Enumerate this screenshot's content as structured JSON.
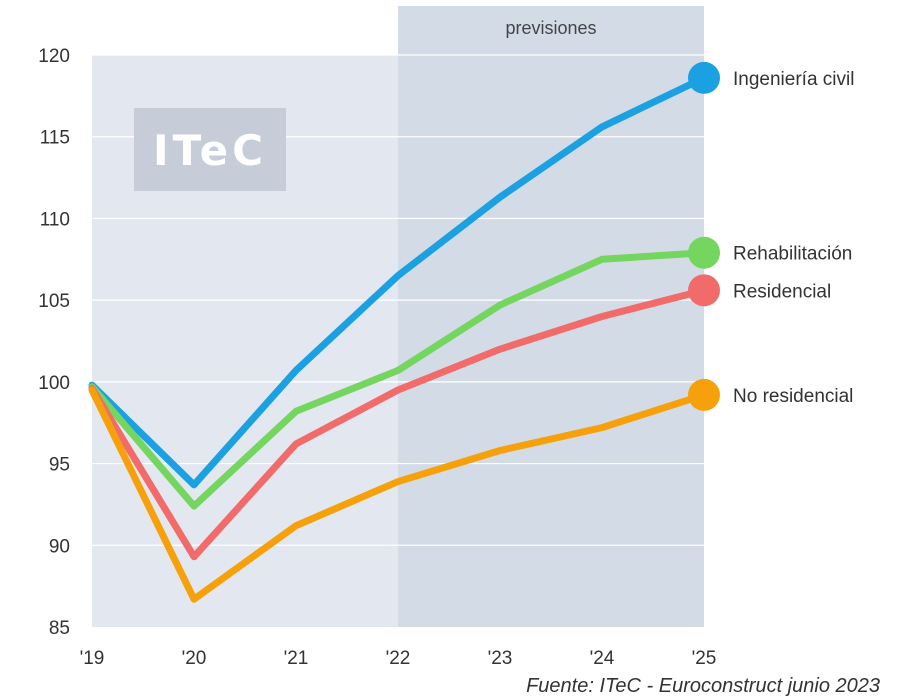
{
  "forecast_label": "previsiones",
  "logo_text": "ITeC",
  "source_note": "Fuente: ITeC - Euroconstruct junio 2023",
  "colors": {
    "plot_bg": "#e3e8f0",
    "forecast_bg": "#d3dce6",
    "logo_bg": "#c7cdd8",
    "grid": "#ffffff"
  },
  "chart_data": {
    "type": "line",
    "x": [
      "'19",
      "'20",
      "'21",
      "'22",
      "'23",
      "'24",
      "'25"
    ],
    "ylim": [
      85,
      120
    ],
    "yticks": [
      85,
      90,
      95,
      100,
      105,
      110,
      115,
      120
    ],
    "grid": true,
    "forecast_start": "'22",
    "series": [
      {
        "name": "Ingeniería civil",
        "color": "#1ba0e2",
        "values": [
          99.8,
          93.7,
          100.7,
          106.5,
          111.3,
          115.6,
          118.6
        ]
      },
      {
        "name": "Rehabilitación",
        "color": "#74d65f",
        "values": [
          99.7,
          92.4,
          98.2,
          100.7,
          104.7,
          107.5,
          107.9
        ]
      },
      {
        "name": "Residencial",
        "color": "#f26b6b",
        "values": [
          99.6,
          89.3,
          96.2,
          99.5,
          102.0,
          104.0,
          105.6
        ]
      },
      {
        "name": "No residencial",
        "color": "#f6a10b",
        "values": [
          99.5,
          86.7,
          91.2,
          93.9,
          95.8,
          97.2,
          99.2
        ]
      }
    ]
  }
}
